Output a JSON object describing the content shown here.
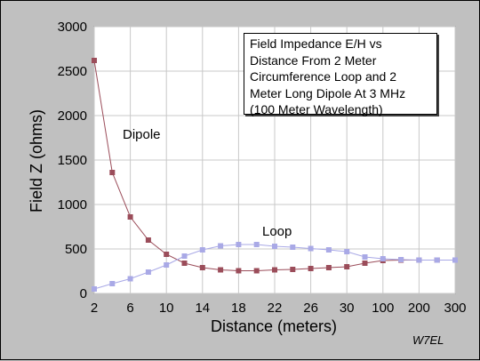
{
  "chart_data": {
    "type": "line",
    "title_lines": [
      "Field Impedance E/H vs",
      "Distance From 2 Meter",
      "Circumference Loop and 2",
      "Meter Long Dipole At 3 MHz",
      "(100 Meter Wavelength)"
    ],
    "xlabel": "Distance (meters)",
    "ylabel": "Field Z (ohms)",
    "ylim": [
      0,
      3000
    ],
    "y_ticks": [
      0,
      500,
      1000,
      1500,
      2000,
      2500,
      3000
    ],
    "x_positions": [
      2,
      4,
      6,
      8,
      10,
      12,
      14,
      16,
      18,
      20,
      22,
      24,
      26,
      28,
      30,
      32,
      100,
      150,
      200,
      250,
      300
    ],
    "x_tick_labels": [
      "2",
      "6",
      "10",
      "14",
      "18",
      "22",
      "26",
      "30",
      "100",
      "200",
      "300"
    ],
    "x_tick_label_indices": [
      0,
      2,
      4,
      6,
      8,
      10,
      12,
      14,
      16,
      18,
      20
    ],
    "grid": true,
    "series": [
      {
        "name": "Dipole",
        "color": "#9b4d5a",
        "values": [
          2620,
          1360,
          860,
          600,
          440,
          340,
          290,
          265,
          255,
          255,
          265,
          270,
          280,
          290,
          300,
          340,
          370,
          375,
          375,
          375,
          375
        ]
      },
      {
        "name": "Loop",
        "color": "#a9a9e6",
        "values": [
          50,
          110,
          165,
          240,
          320,
          420,
          490,
          535,
          550,
          550,
          530,
          520,
          505,
          490,
          470,
          410,
          390,
          380,
          375,
          375,
          375
        ]
      }
    ],
    "annotations": {
      "credit": "W7EL"
    }
  }
}
